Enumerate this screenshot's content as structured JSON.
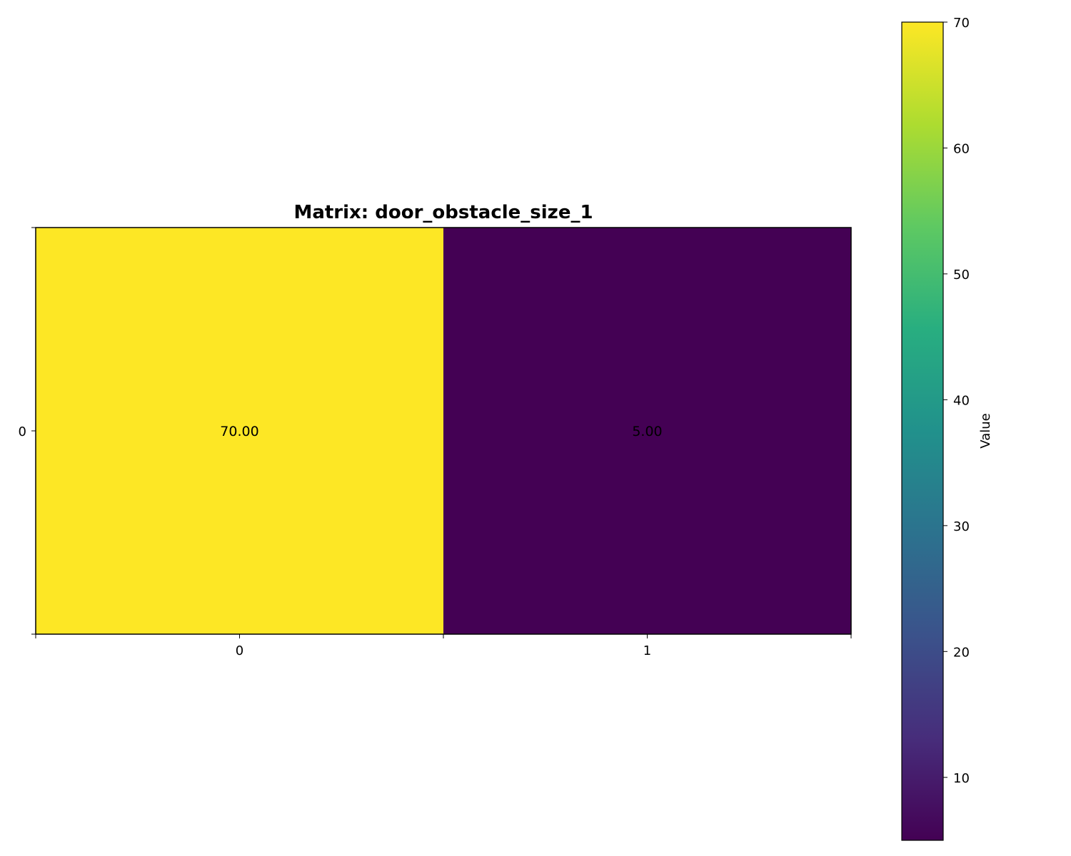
{
  "chart_data": {
    "type": "heatmap",
    "title": "Matrix: door_obstacle_size_1",
    "x_ticks": [
      "0",
      "1"
    ],
    "y_ticks": [
      "0"
    ],
    "values": [
      [
        70.0,
        5.0
      ]
    ],
    "cell_labels": [
      [
        "70.00",
        "5.00"
      ]
    ],
    "colormap": "viridis",
    "colorbar": {
      "label": "Value",
      "range": [
        5,
        70
      ],
      "ticks": [
        10,
        20,
        30,
        40,
        50,
        60,
        70
      ],
      "tick_labels": [
        "10",
        "20",
        "30",
        "40",
        "50",
        "60",
        "70"
      ]
    },
    "grid": false,
    "legend": "colorbar-right"
  }
}
